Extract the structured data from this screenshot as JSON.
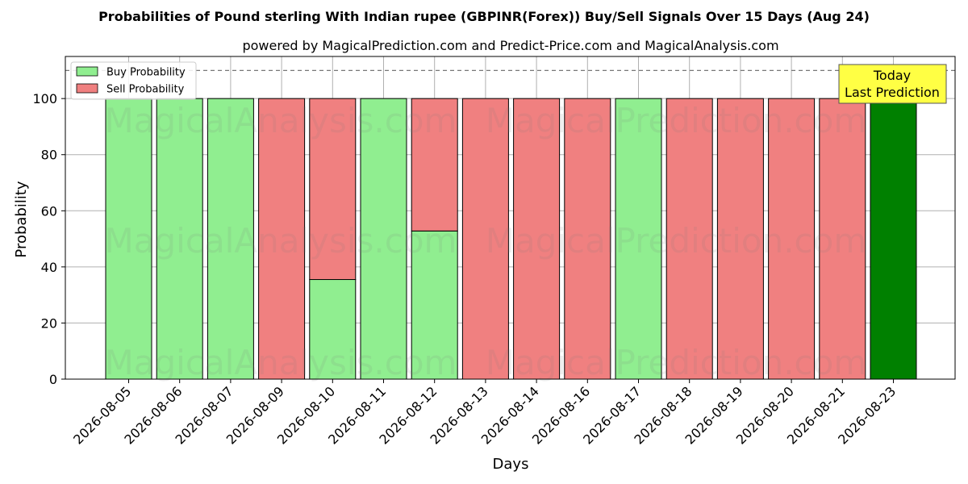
{
  "chart_data": {
    "type": "bar",
    "stacked": true,
    "title": "Probabilities of Pound sterling With Indian rupee (GBPINR(Forex)) Buy/Sell Signals Over 15 Days (Aug 24)",
    "subtitle": "powered by MagicalPrediction.com and Predict-Price.com and MagicalAnalysis.com",
    "xlabel": "Days",
    "ylabel": "Probability",
    "ylim": [
      0,
      115
    ],
    "yticks": [
      0,
      20,
      40,
      60,
      80,
      100
    ],
    "reference_line": 110,
    "grid": true,
    "legend_placement": "top-left",
    "categories": [
      "2026-08-05",
      "2026-08-06",
      "2026-08-07",
      "2026-08-09",
      "2026-08-10",
      "2026-08-11",
      "2026-08-12",
      "2026-08-13",
      "2026-08-14",
      "2026-08-16",
      "2026-08-17",
      "2026-08-18",
      "2026-08-19",
      "2026-08-20",
      "2026-08-21",
      "2026-08-23"
    ],
    "series": [
      {
        "name": "Buy Probability",
        "color": "#90ee90",
        "values": [
          100,
          100,
          100,
          0,
          35.5,
          100,
          52.8,
          0,
          0,
          0,
          100,
          0,
          0,
          0,
          0,
          100
        ]
      },
      {
        "name": "Sell Probability",
        "color": "#f08080",
        "values": [
          0,
          0,
          0,
          100,
          64.5,
          0,
          47.2,
          100,
          100,
          100,
          0,
          100,
          100,
          100,
          100,
          0
        ]
      }
    ],
    "highlight": {
      "index": 15,
      "color": "#008000"
    },
    "annotation": {
      "line1": "Today",
      "line2": "Last Prediction",
      "color": "#ffff44"
    },
    "watermarks": [
      "MagicalAnalysis.com",
      "MagicalPrediction.com"
    ]
  }
}
